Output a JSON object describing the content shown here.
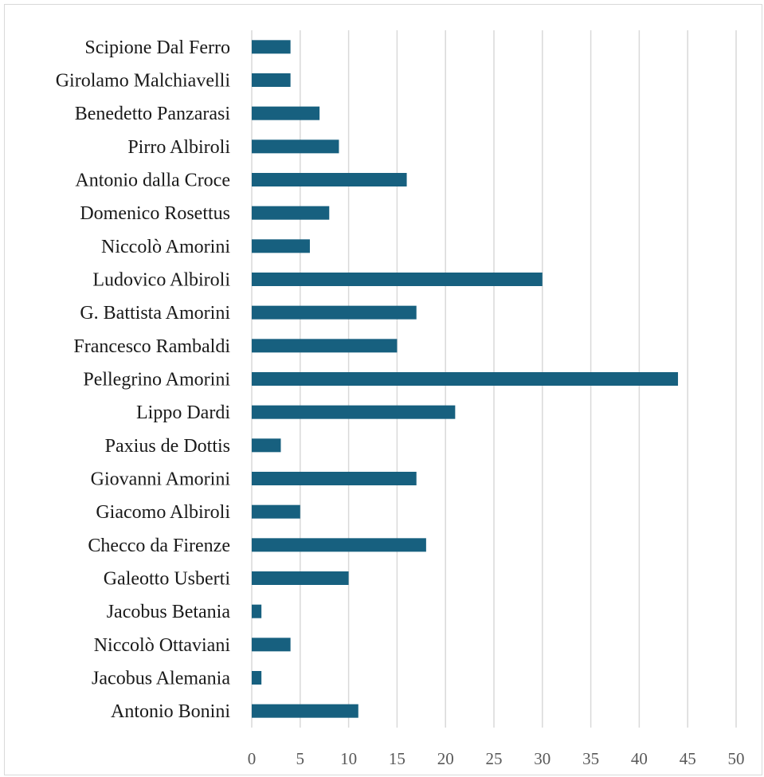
{
  "chart_data": {
    "type": "bar",
    "orientation": "horizontal",
    "title": "",
    "xlabel": "",
    "ylabel": "",
    "categories": [
      "Scipione Dal Ferro",
      "Girolamo Malchiavelli",
      "Benedetto Panzarasi",
      "Pirro Albiroli",
      "Antonio dalla Croce",
      "Domenico Rosettus",
      "Niccolò Amorini",
      "Ludovico Albiroli",
      "G. Battista Amorini",
      "Francesco Rambaldi",
      "Pellegrino Amorini",
      "Lippo Dardi",
      "Paxius de Dottis",
      "Giovanni Amorini",
      "Giacomo Albiroli",
      "Checco da Firenze",
      "Galeotto Usberti",
      "Jacobus Betania",
      "Niccolò Ottaviani",
      "Jacobus Alemania",
      "Antonio Bonini"
    ],
    "values": [
      4,
      4,
      7,
      9,
      16,
      8,
      6,
      30,
      17,
      15,
      44,
      21,
      3,
      17,
      5,
      18,
      10,
      1,
      4,
      1,
      11
    ],
    "xlim": [
      0,
      50
    ],
    "xticks": [
      "0",
      "5",
      "10",
      "15",
      "20",
      "25",
      "30",
      "35",
      "40",
      "45",
      "50"
    ],
    "grid": "vertical",
    "legend": "none",
    "bar_color": "#17607f",
    "grid_color": "#d9d9d9"
  }
}
